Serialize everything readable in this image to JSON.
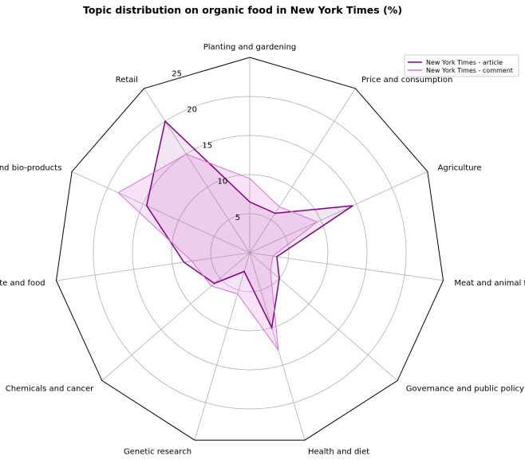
{
  "chart_data": {
    "type": "radar",
    "title": "Topic distribution on organic food in New York Times (%)",
    "categories": [
      "Planting and gardening",
      "Price and consumption",
      "Agriculture",
      "Meat and animal feeding",
      "Governance and public policy",
      "Health and diet",
      "Genetic research",
      "Chemicals and cancer",
      "Taste and food",
      "GMO label and bio-products",
      "Retail"
    ],
    "rlim": [
      0,
      25
    ],
    "rticks": [
      5,
      10,
      15,
      20,
      25
    ],
    "series": [
      {
        "name": "New York Times - article",
        "values": [
          6.5,
          6.0,
          14.5,
          3.5,
          5.0,
          10.0,
          2.5,
          6.0,
          8.5,
          14.5,
          20.0
        ],
        "color": "#800080",
        "fill": "#800080",
        "fill_opacity": 0.1
      },
      {
        "name": "New York Times - comment",
        "values": [
          9.5,
          7.0,
          9.5,
          3.0,
          3.5,
          13.0,
          5.5,
          6.5,
          7.5,
          18.5,
          15.0
        ],
        "color": "#DA70D6",
        "fill": "#DA70D6",
        "fill_opacity": 0.2
      }
    ],
    "grid": true,
    "legend_position": "top-right"
  }
}
